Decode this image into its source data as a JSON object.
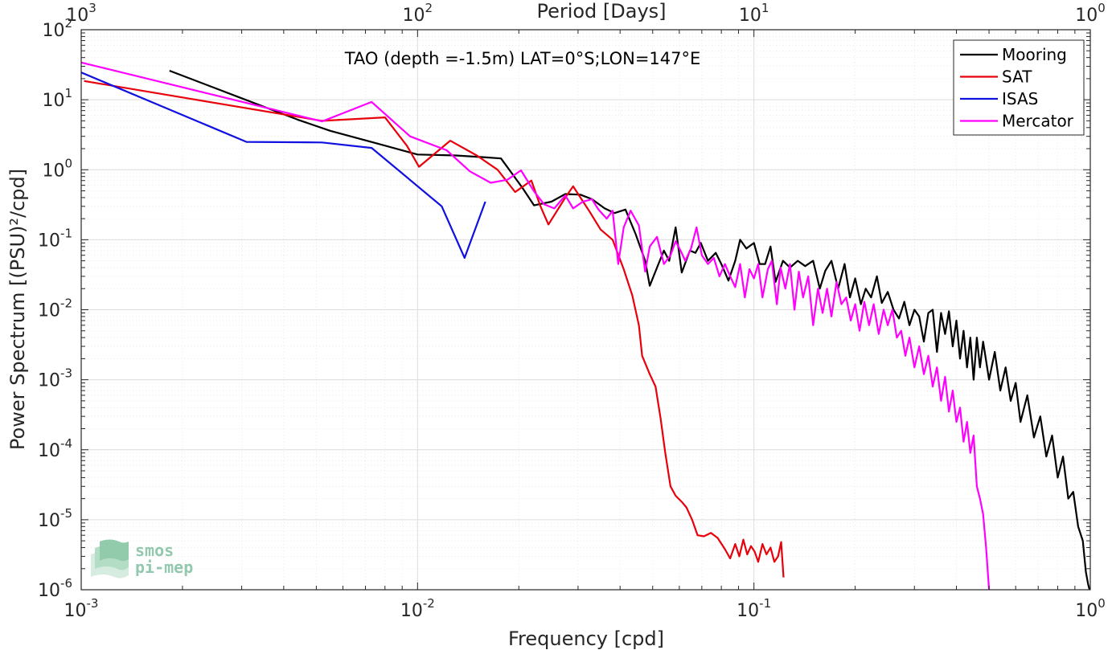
{
  "chart_data": {
    "type": "line",
    "title": "TAO (depth =-1.5m) LAT=0°S;LON=147°E",
    "xlabel": "Frequency [cpd]",
    "ylabel": "Power Spectrum [(PSU)²/cpd]",
    "top_xlabel": "Period [Days]",
    "x_scale": "log",
    "y_scale": "log",
    "xlim": [
      0.001,
      1
    ],
    "ylim": [
      1e-06,
      100
    ],
    "x_ticks": [
      {
        "base": "10",
        "exp": "-3",
        "value": 0.001
      },
      {
        "base": "10",
        "exp": "-2",
        "value": 0.01
      },
      {
        "base": "10",
        "exp": "-1",
        "value": 0.1
      },
      {
        "base": "10",
        "exp": "0",
        "value": 1
      }
    ],
    "top_ticks": [
      {
        "base": "10",
        "exp": "3",
        "value": 0.001
      },
      {
        "base": "10",
        "exp": "2",
        "value": 0.01
      },
      {
        "base": "10",
        "exp": "1",
        "value": 0.1
      },
      {
        "base": "10",
        "exp": "0",
        "value": 1
      }
    ],
    "y_ticks": [
      {
        "base": "10",
        "exp": "2",
        "value": 100
      },
      {
        "base": "10",
        "exp": "1",
        "value": 10
      },
      {
        "base": "10",
        "exp": "0",
        "value": 1
      },
      {
        "base": "10",
        "exp": "-1",
        "value": 0.1
      },
      {
        "base": "10",
        "exp": "-2",
        "value": 0.01
      },
      {
        "base": "10",
        "exp": "-3",
        "value": 0.001
      },
      {
        "base": "10",
        "exp": "-4",
        "value": 0.0001
      },
      {
        "base": "10",
        "exp": "-5",
        "value": 1e-05
      },
      {
        "base": "10",
        "exp": "-6",
        "value": 1e-06
      }
    ],
    "grid": true,
    "legend_position": "top-right",
    "series": [
      {
        "name": "Mooring",
        "color": "#000000",
        "points": [
          [
            0.00183,
            26
          ],
          [
            0.003,
            10.5
          ],
          [
            0.0044,
            5.2
          ],
          [
            0.0055,
            3.6
          ],
          [
            0.0075,
            2.4
          ],
          [
            0.01,
            1.65
          ],
          [
            0.013,
            1.6
          ],
          [
            0.016,
            1.5
          ],
          [
            0.0177,
            1.45
          ],
          [
            0.0205,
            0.55
          ],
          [
            0.0222,
            0.31
          ],
          [
            0.025,
            0.35
          ],
          [
            0.0275,
            0.45
          ],
          [
            0.0305,
            0.44
          ],
          [
            0.033,
            0.38
          ],
          [
            0.036,
            0.28
          ],
          [
            0.0385,
            0.24
          ],
          [
            0.0415,
            0.27
          ],
          [
            0.0445,
            0.12
          ],
          [
            0.0475,
            0.05
          ],
          [
            0.049,
            0.022
          ],
          [
            0.052,
            0.045
          ],
          [
            0.054,
            0.07
          ],
          [
            0.056,
            0.05
          ],
          [
            0.0585,
            0.15
          ],
          [
            0.061,
            0.034
          ],
          [
            0.0645,
            0.07
          ],
          [
            0.067,
            0.065
          ],
          [
            0.0695,
            0.09
          ],
          [
            0.073,
            0.05
          ],
          [
            0.077,
            0.065
          ],
          [
            0.08,
            0.045
          ],
          [
            0.084,
            0.026
          ],
          [
            0.088,
            0.05
          ],
          [
            0.091,
            0.1
          ],
          [
            0.095,
            0.075
          ],
          [
            0.1,
            0.09
          ],
          [
            0.104,
            0.045
          ],
          [
            0.108,
            0.045
          ],
          [
            0.112,
            0.08
          ],
          [
            0.116,
            0.025
          ],
          [
            0.122,
            0.05
          ],
          [
            0.128,
            0.04
          ],
          [
            0.135,
            0.05
          ],
          [
            0.142,
            0.042
          ],
          [
            0.15,
            0.05
          ],
          [
            0.157,
            0.02
          ],
          [
            0.163,
            0.036
          ],
          [
            0.17,
            0.05
          ],
          [
            0.178,
            0.02
          ],
          [
            0.186,
            0.045
          ],
          [
            0.193,
            0.015
          ],
          [
            0.2,
            0.028
          ],
          [
            0.208,
            0.012
          ],
          [
            0.215,
            0.02
          ],
          [
            0.223,
            0.015
          ],
          [
            0.232,
            0.03
          ],
          [
            0.24,
            0.0125
          ],
          [
            0.25,
            0.018
          ],
          [
            0.26,
            0.01
          ],
          [
            0.27,
            0.0075
          ],
          [
            0.28,
            0.013
          ],
          [
            0.29,
            0.006
          ],
          [
            0.3,
            0.01
          ],
          [
            0.31,
            0.008
          ],
          [
            0.32,
            0.0035
          ],
          [
            0.33,
            0.009
          ],
          [
            0.34,
            0.01
          ],
          [
            0.35,
            0.0025
          ],
          [
            0.36,
            0.009
          ],
          [
            0.37,
            0.0045
          ],
          [
            0.38,
            0.0095
          ],
          [
            0.39,
            0.003
          ],
          [
            0.4,
            0.007
          ],
          [
            0.41,
            0.002
          ],
          [
            0.42,
            0.005
          ],
          [
            0.43,
            0.0015
          ],
          [
            0.44,
            0.004
          ],
          [
            0.45,
            0.001
          ],
          [
            0.46,
            0.004
          ],
          [
            0.47,
            0.0015
          ],
          [
            0.48,
            0.0035
          ],
          [
            0.5,
            0.001
          ],
          [
            0.52,
            0.0025
          ],
          [
            0.54,
            0.0007
          ],
          [
            0.56,
            0.0015
          ],
          [
            0.58,
            0.0005
          ],
          [
            0.6,
            0.0009
          ],
          [
            0.62,
            0.00025
          ],
          [
            0.65,
            0.0006
          ],
          [
            0.68,
            0.00015
          ],
          [
            0.71,
            0.0003
          ],
          [
            0.74,
            8e-05
          ],
          [
            0.77,
            0.00016
          ],
          [
            0.8,
            4e-05
          ],
          [
            0.83,
            8e-05
          ],
          [
            0.86,
            2e-05
          ],
          [
            0.89,
            2.5e-05
          ],
          [
            0.92,
            8e-06
          ],
          [
            0.95,
            5e-06
          ],
          [
            0.97,
            1.8e-06
          ],
          [
            0.985,
            1.2e-06
          ],
          [
            0.995,
            1e-06
          ]
        ]
      },
      {
        "name": "SAT",
        "color": "#e8000b",
        "points": [
          [
            0.00102,
            18.5
          ],
          [
            0.0052,
            5.0
          ],
          [
            0.008,
            5.6
          ],
          [
            0.0093,
            2.2
          ],
          [
            0.0101,
            1.1
          ],
          [
            0.0125,
            2.6
          ],
          [
            0.015,
            1.6
          ],
          [
            0.0173,
            1.0
          ],
          [
            0.0195,
            0.48
          ],
          [
            0.0218,
            0.7
          ],
          [
            0.0232,
            0.3
          ],
          [
            0.0245,
            0.165
          ],
          [
            0.0275,
            0.4
          ],
          [
            0.029,
            0.58
          ],
          [
            0.0305,
            0.4
          ],
          [
            0.0325,
            0.25
          ],
          [
            0.035,
            0.14
          ],
          [
            0.038,
            0.1
          ],
          [
            0.041,
            0.038
          ],
          [
            0.0435,
            0.016
          ],
          [
            0.0455,
            0.006
          ],
          [
            0.0465,
            0.0022
          ],
          [
            0.049,
            0.0012
          ],
          [
            0.051,
            0.0008
          ],
          [
            0.0528,
            0.00028
          ],
          [
            0.0545,
            9e-05
          ],
          [
            0.0565,
            3e-05
          ],
          [
            0.0585,
            2.2e-05
          ],
          [
            0.061,
            1.8e-05
          ],
          [
            0.063,
            1.5e-05
          ],
          [
            0.0655,
            1e-05
          ],
          [
            0.068,
            6e-06
          ],
          [
            0.071,
            5.8e-06
          ],
          [
            0.0745,
            6.5e-06
          ],
          [
            0.078,
            5.5e-06
          ],
          [
            0.082,
            3.8e-06
          ],
          [
            0.085,
            2.8e-06
          ],
          [
            0.088,
            4.5e-06
          ],
          [
            0.0905,
            3e-06
          ],
          [
            0.093,
            5.2e-06
          ],
          [
            0.0955,
            3.2e-06
          ],
          [
            0.098,
            4.2e-06
          ],
          [
            0.1005,
            3.5e-06
          ],
          [
            0.103,
            2.5e-06
          ],
          [
            0.106,
            4.5e-06
          ],
          [
            0.109,
            3.2e-06
          ],
          [
            0.112,
            4e-06
          ],
          [
            0.115,
            2.5e-06
          ],
          [
            0.118,
            3e-06
          ],
          [
            0.1205,
            4.8e-06
          ],
          [
            0.1225,
            1.5e-06
          ]
        ]
      },
      {
        "name": "ISAS",
        "color": "#1010e0",
        "points": [
          [
            0.001,
            24.5
          ],
          [
            0.0031,
            2.5
          ],
          [
            0.0052,
            2.45
          ],
          [
            0.0073,
            2.05
          ],
          [
            0.0118,
            0.3
          ],
          [
            0.0138,
            0.055
          ],
          [
            0.0159,
            0.35
          ]
        ]
      },
      {
        "name": "Mercator",
        "color": "#ff00ff",
        "points": [
          [
            0.001,
            34
          ],
          [
            0.0052,
            4.9
          ],
          [
            0.0073,
            9.3
          ],
          [
            0.0095,
            3.0
          ],
          [
            0.0122,
            1.9
          ],
          [
            0.0143,
            0.95
          ],
          [
            0.0165,
            0.65
          ],
          [
            0.0185,
            0.72
          ],
          [
            0.0203,
            0.98
          ],
          [
            0.0222,
            0.49
          ],
          [
            0.0238,
            0.32
          ],
          [
            0.0255,
            0.28
          ],
          [
            0.0275,
            0.43
          ],
          [
            0.029,
            0.28
          ],
          [
            0.031,
            0.35
          ],
          [
            0.033,
            0.38
          ],
          [
            0.0345,
            0.27
          ],
          [
            0.0365,
            0.2
          ],
          [
            0.038,
            0.26
          ],
          [
            0.0395,
            0.045
          ],
          [
            0.041,
            0.15
          ],
          [
            0.043,
            0.26
          ],
          [
            0.0455,
            0.16
          ],
          [
            0.0475,
            0.035
          ],
          [
            0.049,
            0.08
          ],
          [
            0.0515,
            0.11
          ],
          [
            0.054,
            0.045
          ],
          [
            0.0565,
            0.06
          ],
          [
            0.0585,
            0.095
          ],
          [
            0.0605,
            0.07
          ],
          [
            0.0625,
            0.05
          ],
          [
            0.065,
            0.075
          ],
          [
            0.0675,
            0.15
          ],
          [
            0.07,
            0.06
          ],
          [
            0.073,
            0.045
          ],
          [
            0.076,
            0.055
          ],
          [
            0.079,
            0.03
          ],
          [
            0.082,
            0.045
          ],
          [
            0.085,
            0.03
          ],
          [
            0.088,
            0.021
          ],
          [
            0.091,
            0.045
          ],
          [
            0.094,
            0.015
          ],
          [
            0.097,
            0.038
          ],
          [
            0.1,
            0.028
          ],
          [
            0.103,
            0.045
          ],
          [
            0.106,
            0.015
          ],
          [
            0.11,
            0.038
          ],
          [
            0.113,
            0.05
          ],
          [
            0.117,
            0.012
          ],
          [
            0.12,
            0.04
          ],
          [
            0.124,
            0.02
          ],
          [
            0.128,
            0.045
          ],
          [
            0.132,
            0.01
          ],
          [
            0.136,
            0.035
          ],
          [
            0.14,
            0.015
          ],
          [
            0.145,
            0.03
          ],
          [
            0.15,
            0.006
          ],
          [
            0.155,
            0.02
          ],
          [
            0.16,
            0.009
          ],
          [
            0.165,
            0.02
          ],
          [
            0.17,
            0.008
          ],
          [
            0.176,
            0.025
          ],
          [
            0.182,
            0.012
          ],
          [
            0.188,
            0.015
          ],
          [
            0.194,
            0.007
          ],
          [
            0.2,
            0.012
          ],
          [
            0.206,
            0.005
          ],
          [
            0.213,
            0.013
          ],
          [
            0.22,
            0.006
          ],
          [
            0.227,
            0.012
          ],
          [
            0.235,
            0.0045
          ],
          [
            0.243,
            0.01
          ],
          [
            0.25,
            0.006
          ],
          [
            0.258,
            0.01
          ],
          [
            0.266,
            0.004
          ],
          [
            0.274,
            0.005
          ],
          [
            0.282,
            0.0022
          ],
          [
            0.29,
            0.004
          ],
          [
            0.3,
            0.0015
          ],
          [
            0.31,
            0.003
          ],
          [
            0.32,
            0.0012
          ],
          [
            0.33,
            0.0022
          ],
          [
            0.34,
            0.0008
          ],
          [
            0.35,
            0.0015
          ],
          [
            0.36,
            0.0005
          ],
          [
            0.37,
            0.0011
          ],
          [
            0.38,
            0.00035
          ],
          [
            0.39,
            0.0007
          ],
          [
            0.4,
            0.00025
          ],
          [
            0.41,
            0.0004
          ],
          [
            0.42,
            0.00013
          ],
          [
            0.43,
            0.00025
          ],
          [
            0.44,
            9e-05
          ],
          [
            0.45,
            0.00016
          ],
          [
            0.46,
            3e-05
          ],
          [
            0.47,
            2e-05
          ],
          [
            0.48,
            1.2e-05
          ],
          [
            0.49,
            4e-06
          ],
          [
            0.5,
            1e-06
          ]
        ]
      }
    ]
  },
  "logo": {
    "line1": "smos",
    "line2": "pi-mep"
  }
}
